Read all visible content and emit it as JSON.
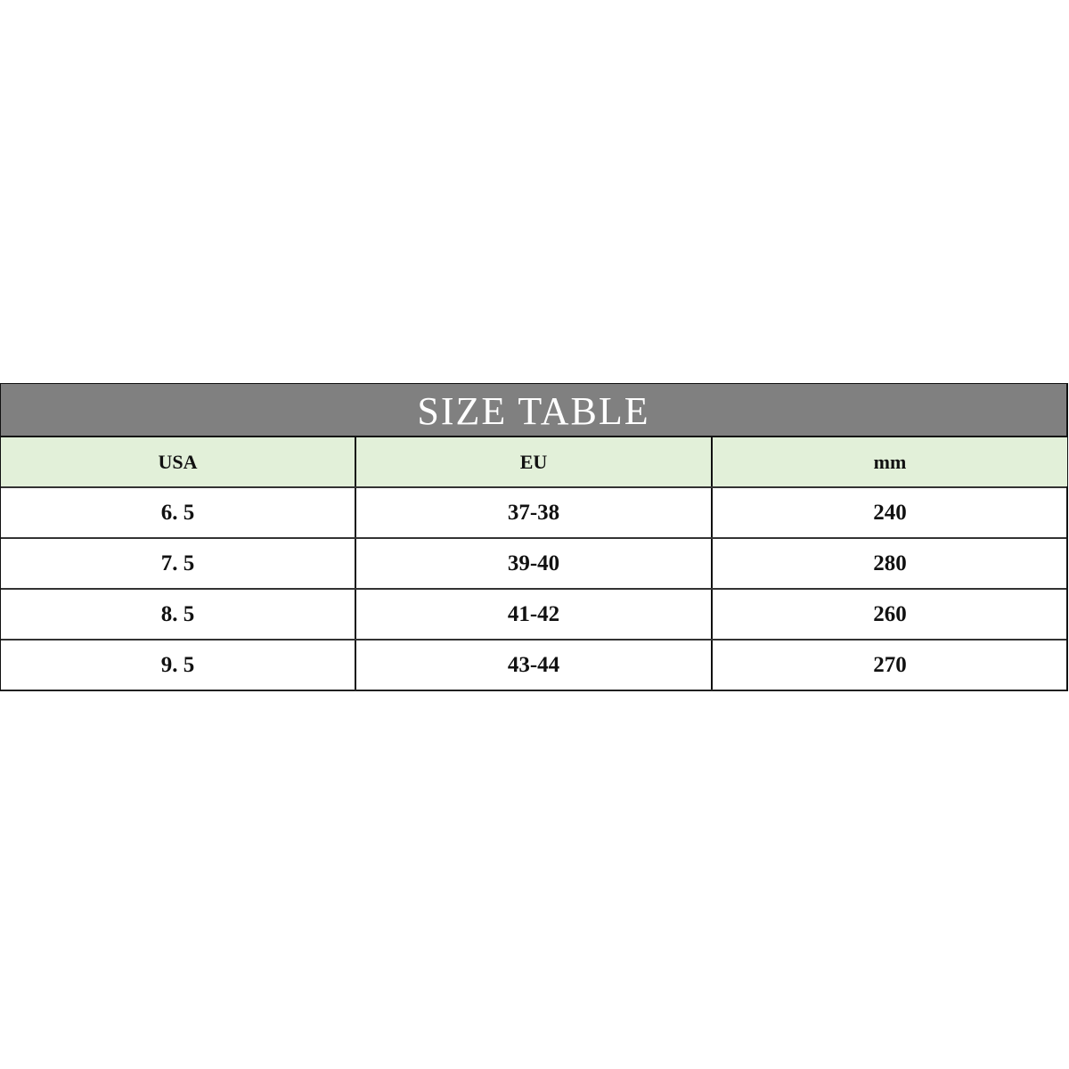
{
  "title": "SIZE TABLE",
  "colors": {
    "title_bg": "#808080",
    "header_bg": "#e2f0d9"
  },
  "headers": [
    "USA",
    "EU",
    "mm"
  ],
  "rows": [
    [
      "6. 5",
      "37-38",
      "240"
    ],
    [
      "7. 5",
      "39-40",
      "280"
    ],
    [
      "8. 5",
      "41-42",
      "260"
    ],
    [
      "9. 5",
      "43-44",
      "270"
    ]
  ]
}
